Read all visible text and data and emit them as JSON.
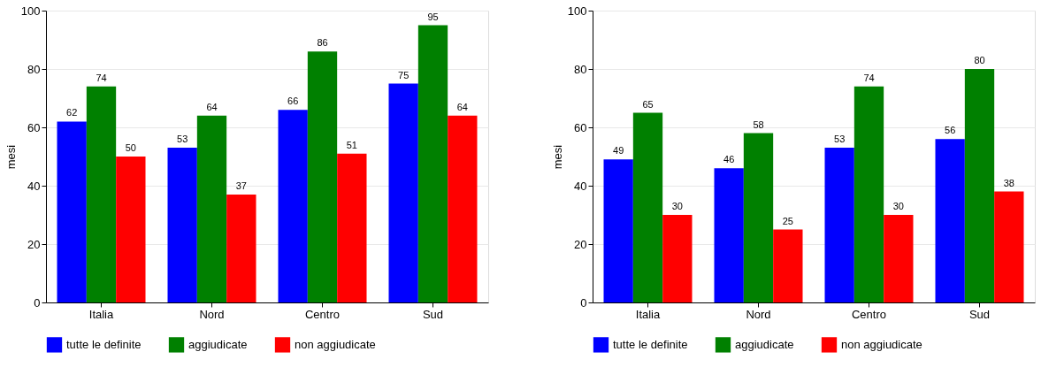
{
  "chart_data": [
    {
      "type": "bar",
      "categories": [
        "Italia",
        "Nord",
        "Centro",
        "Sud"
      ],
      "ylabel": "mesi",
      "ylim": [
        0,
        100
      ],
      "yticks": [
        0,
        20,
        40,
        60,
        80,
        100
      ],
      "grid": "y",
      "legend": "bottom",
      "data_labels": true,
      "series": [
        {
          "name": "tutte le definite",
          "color": "#0000ff",
          "values": [
            62,
            53,
            66,
            75
          ]
        },
        {
          "name": "aggiudicate",
          "color": "#008000",
          "values": [
            74,
            64,
            86,
            95
          ]
        },
        {
          "name": "non aggiudicate",
          "color": "#ff0000",
          "values": [
            50,
            37,
            51,
            64
          ]
        }
      ]
    },
    {
      "type": "bar",
      "categories": [
        "Italia",
        "Nord",
        "Centro",
        "Sud"
      ],
      "ylabel": "mesi",
      "ylim": [
        0,
        100
      ],
      "yticks": [
        0,
        20,
        40,
        60,
        80,
        100
      ],
      "grid": "y",
      "legend": "bottom",
      "data_labels": true,
      "series": [
        {
          "name": "tutte le definite",
          "color": "#0000ff",
          "values": [
            49,
            46,
            53,
            56
          ]
        },
        {
          "name": "aggiudicate",
          "color": "#008000",
          "values": [
            65,
            58,
            74,
            80
          ]
        },
        {
          "name": "non aggiudicate",
          "color": "#ff0000",
          "values": [
            30,
            25,
            30,
            38
          ]
        }
      ]
    }
  ]
}
